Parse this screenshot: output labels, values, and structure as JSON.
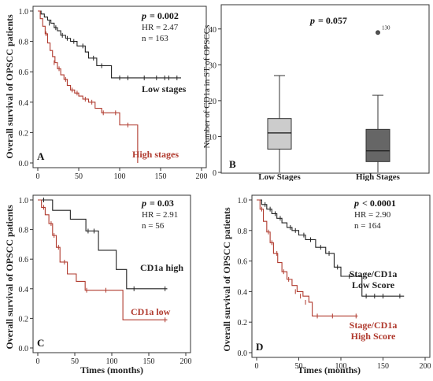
{
  "chart_data": [
    {
      "type": "line",
      "panel_letter": "A",
      "ylabel": "Overall survival of OPSCC patients",
      "xlabel": "",
      "xlim": [
        0,
        200
      ],
      "ylim": [
        0,
        1.0
      ],
      "xticks": [
        0,
        50,
        100,
        150,
        200
      ],
      "yticks": [
        0,
        0.2,
        0.4,
        0.6,
        0.8,
        1.0
      ],
      "stats": {
        "p_label": "p",
        "p_value": "= 0.002",
        "hr": "HR = 2.47",
        "n": "n = 163"
      },
      "series": [
        {
          "name": "Low stages",
          "color": "#222222",
          "x": [
            0,
            4,
            8,
            12,
            16,
            20,
            24,
            28,
            34,
            40,
            48,
            58,
            62,
            72,
            90,
            175
          ],
          "y": [
            1.0,
            0.98,
            0.96,
            0.94,
            0.92,
            0.89,
            0.87,
            0.84,
            0.82,
            0.8,
            0.77,
            0.73,
            0.69,
            0.64,
            0.56,
            0.56
          ],
          "censor_x": [
            14,
            22,
            30,
            36,
            44,
            55,
            68,
            78,
            100,
            110,
            130,
            145,
            155,
            160,
            170
          ],
          "censor_y": [
            0.92,
            0.89,
            0.84,
            0.82,
            0.8,
            0.77,
            0.69,
            0.64,
            0.56,
            0.56,
            0.56,
            0.56,
            0.56,
            0.56,
            0.56
          ]
        },
        {
          "name": "High stages",
          "color": "#b03a2e",
          "x": [
            0,
            3,
            6,
            9,
            12,
            15,
            18,
            21,
            24,
            28,
            32,
            36,
            40,
            45,
            50,
            55,
            62,
            70,
            78,
            85,
            100,
            122,
            122
          ],
          "y": [
            1.0,
            0.95,
            0.9,
            0.85,
            0.79,
            0.74,
            0.7,
            0.66,
            0.62,
            0.58,
            0.55,
            0.51,
            0.48,
            0.46,
            0.44,
            0.42,
            0.4,
            0.36,
            0.33,
            0.33,
            0.25,
            0.25,
            0.0
          ],
          "censor_x": [
            10,
            20,
            26,
            34,
            42,
            48,
            58,
            66,
            80,
            95,
            110
          ],
          "censor_y": [
            0.85,
            0.66,
            0.62,
            0.55,
            0.48,
            0.46,
            0.42,
            0.4,
            0.33,
            0.33,
            0.25
          ]
        }
      ]
    },
    {
      "type": "box",
      "panel_letter": "B",
      "ylabel": "Number of CD1a in ST of OPSCCs",
      "ylim": [
        0,
        45
      ],
      "yticks": [
        0,
        10,
        20,
        30,
        40
      ],
      "categories": [
        "Low Stages",
        "High Stages"
      ],
      "stats": {
        "p_label": "p",
        "p_value": "= 0.057"
      },
      "boxes": [
        {
          "category": "Low Stages",
          "min": 0,
          "q1": 6.5,
          "median": 11,
          "q3": 15,
          "max": 27,
          "color": "#cccccc"
        },
        {
          "category": "High Stages",
          "min": 0,
          "q1": 3,
          "median": 6,
          "q3": 12,
          "max": 21.5,
          "color": "#666666"
        }
      ],
      "outlier": {
        "category": "High Stages",
        "value": 39,
        "label": "130"
      }
    },
    {
      "type": "line",
      "panel_letter": "C",
      "ylabel": "Overall survival of OPSCC patients",
      "xlabel": "Times (months)",
      "xlim": [
        0,
        200
      ],
      "ylim": [
        0,
        1.0
      ],
      "xticks": [
        0,
        50,
        100,
        150,
        200
      ],
      "yticks": [
        0,
        0.2,
        0.4,
        0.6,
        0.8,
        1.0
      ],
      "stats": {
        "p_label": "p",
        "p_value": "= 0.03",
        "hr": "HR = 2.91",
        "n": "n = 56"
      },
      "series": [
        {
          "name": "CD1a high",
          "color": "#222222",
          "x": [
            0,
            12,
            20,
            44,
            65,
            82,
            106,
            120,
            175
          ],
          "y": [
            1.0,
            1.0,
            0.93,
            0.87,
            0.79,
            0.66,
            0.53,
            0.4,
            0.4
          ],
          "censor_x": [
            8,
            68,
            76,
            130,
            172
          ],
          "censor_y": [
            1.0,
            0.79,
            0.79,
            0.4,
            0.4
          ]
        },
        {
          "name": "CD1a low",
          "color": "#b03a2e",
          "x": [
            0,
            5,
            10,
            15,
            20,
            25,
            30,
            40,
            52,
            64,
            115,
            175
          ],
          "y": [
            1.0,
            0.95,
            0.9,
            0.84,
            0.76,
            0.68,
            0.58,
            0.5,
            0.45,
            0.39,
            0.19,
            0.19
          ],
          "censor_x": [
            8,
            18,
            22,
            28,
            36,
            66,
            92,
            172
          ],
          "censor_y": [
            0.95,
            0.84,
            0.76,
            0.68,
            0.58,
            0.39,
            0.39,
            0.19
          ]
        }
      ]
    },
    {
      "type": "line",
      "panel_letter": "D",
      "ylabel": "Overall survival of OPSCC patients",
      "xlabel": "Times (months)",
      "xlim": [
        0,
        200
      ],
      "ylim": [
        0,
        1.0
      ],
      "xticks": [
        0,
        50,
        100,
        150,
        200
      ],
      "yticks": [
        0,
        0.2,
        0.4,
        0.6,
        0.8,
        1.0
      ],
      "stats": {
        "p_label": "p",
        "p_value": "< 0.0001",
        "hr": "HR = 2.90",
        "n": "n = 164"
      },
      "series": [
        {
          "name": "Stage/CD1a Low Score",
          "name_lines": [
            "Stage/CD1a",
            "Low Score"
          ],
          "color": "#222222",
          "x": [
            0,
            6,
            12,
            18,
            24,
            30,
            36,
            42,
            50,
            58,
            70,
            82,
            92,
            100,
            125,
            175
          ],
          "y": [
            1.0,
            0.97,
            0.94,
            0.91,
            0.88,
            0.85,
            0.82,
            0.8,
            0.77,
            0.74,
            0.69,
            0.65,
            0.56,
            0.5,
            0.37,
            0.37
          ],
          "censor_x": [
            10,
            16,
            22,
            28,
            40,
            46,
            56,
            64,
            76,
            86,
            96,
            110,
            130,
            140,
            150,
            170
          ],
          "censor_y": [
            0.97,
            0.94,
            0.91,
            0.88,
            0.82,
            0.8,
            0.77,
            0.74,
            0.69,
            0.65,
            0.56,
            0.5,
            0.37,
            0.37,
            0.37,
            0.37
          ]
        },
        {
          "name": "Stage/CD1a High Score",
          "name_lines": [
            "Stage/CD1a",
            "High Score"
          ],
          "color": "#b03a2e",
          "x": [
            0,
            4,
            8,
            12,
            16,
            20,
            25,
            30,
            36,
            42,
            48,
            55,
            62,
            66,
            120
          ],
          "y": [
            1.0,
            0.94,
            0.86,
            0.79,
            0.72,
            0.65,
            0.59,
            0.53,
            0.48,
            0.44,
            0.4,
            0.37,
            0.33,
            0.24,
            0.24
          ],
          "censor_x": [
            6,
            14,
            18,
            24,
            32,
            38,
            46,
            52,
            58,
            72,
            90,
            118
          ],
          "censor_y": [
            0.94,
            0.79,
            0.72,
            0.65,
            0.53,
            0.48,
            0.4,
            0.37,
            0.33,
            0.24,
            0.24,
            0.24
          ]
        }
      ]
    }
  ]
}
